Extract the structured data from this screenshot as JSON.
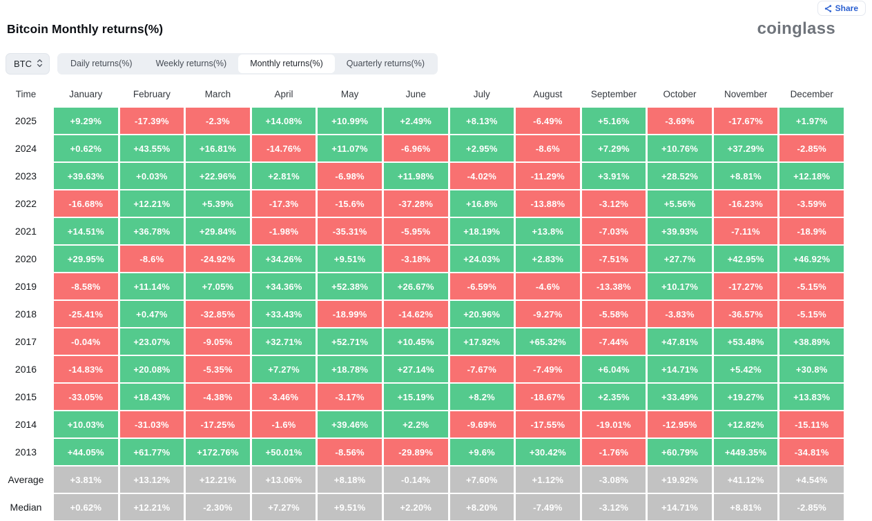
{
  "colors": {
    "positive_green": "#54ca8d",
    "negative_red": "#f87171",
    "summary_gray": "#c2c2c2",
    "accent_blue": "#2a5fd0"
  },
  "header": {
    "title": "Bitcoin Monthly returns(%)",
    "logo": "coinglass",
    "share_label": "Share",
    "share_icon": "share-nodes-icon"
  },
  "controls": {
    "symbol": "BTC",
    "symbol_icon": "chevron-up-down-icon",
    "tabs": [
      {
        "label": "Daily returns(%)",
        "active": false
      },
      {
        "label": "Weekly returns(%)",
        "active": false
      },
      {
        "label": "Monthly returns(%)",
        "active": true
      },
      {
        "label": "Quarterly returns(%)",
        "active": false
      }
    ]
  },
  "table": {
    "columns": [
      "Time",
      "January",
      "February",
      "March",
      "April",
      "May",
      "June",
      "July",
      "August",
      "September",
      "October",
      "November",
      "December"
    ],
    "rows": [
      {
        "label": "2025",
        "kind": "year",
        "values": [
          "+9.29%",
          "-17.39%",
          "-2.3%",
          "+14.08%",
          "+10.99%",
          "+2.49%",
          "+8.13%",
          "-6.49%",
          "+5.16%",
          "-3.69%",
          "-17.67%",
          "+1.97%"
        ]
      },
      {
        "label": "2024",
        "kind": "year",
        "values": [
          "+0.62%",
          "+43.55%",
          "+16.81%",
          "-14.76%",
          "+11.07%",
          "-6.96%",
          "+2.95%",
          "-8.6%",
          "+7.29%",
          "+10.76%",
          "+37.29%",
          "-2.85%"
        ]
      },
      {
        "label": "2023",
        "kind": "year",
        "values": [
          "+39.63%",
          "+0.03%",
          "+22.96%",
          "+2.81%",
          "-6.98%",
          "+11.98%",
          "-4.02%",
          "-11.29%",
          "+3.91%",
          "+28.52%",
          "+8.81%",
          "+12.18%"
        ]
      },
      {
        "label": "2022",
        "kind": "year",
        "values": [
          "-16.68%",
          "+12.21%",
          "+5.39%",
          "-17.3%",
          "-15.6%",
          "-37.28%",
          "+16.8%",
          "-13.88%",
          "-3.12%",
          "+5.56%",
          "-16.23%",
          "-3.59%"
        ]
      },
      {
        "label": "2021",
        "kind": "year",
        "values": [
          "+14.51%",
          "+36.78%",
          "+29.84%",
          "-1.98%",
          "-35.31%",
          "-5.95%",
          "+18.19%",
          "+13.8%",
          "-7.03%",
          "+39.93%",
          "-7.11%",
          "-18.9%"
        ]
      },
      {
        "label": "2020",
        "kind": "year",
        "values": [
          "+29.95%",
          "-8.6%",
          "-24.92%",
          "+34.26%",
          "+9.51%",
          "-3.18%",
          "+24.03%",
          "+2.83%",
          "-7.51%",
          "+27.7%",
          "+42.95%",
          "+46.92%"
        ]
      },
      {
        "label": "2019",
        "kind": "year",
        "values": [
          "-8.58%",
          "+11.14%",
          "+7.05%",
          "+34.36%",
          "+52.38%",
          "+26.67%",
          "-6.59%",
          "-4.6%",
          "-13.38%",
          "+10.17%",
          "-17.27%",
          "-5.15%"
        ]
      },
      {
        "label": "2018",
        "kind": "year",
        "values": [
          "-25.41%",
          "+0.47%",
          "-32.85%",
          "+33.43%",
          "-18.99%",
          "-14.62%",
          "+20.96%",
          "-9.27%",
          "-5.58%",
          "-3.83%",
          "-36.57%",
          "-5.15%"
        ]
      },
      {
        "label": "2017",
        "kind": "year",
        "values": [
          "-0.04%",
          "+23.07%",
          "-9.05%",
          "+32.71%",
          "+52.71%",
          "+10.45%",
          "+17.92%",
          "+65.32%",
          "-7.44%",
          "+47.81%",
          "+53.48%",
          "+38.89%"
        ]
      },
      {
        "label": "2016",
        "kind": "year",
        "values": [
          "-14.83%",
          "+20.08%",
          "-5.35%",
          "+7.27%",
          "+18.78%",
          "+27.14%",
          "-7.67%",
          "-7.49%",
          "+6.04%",
          "+14.71%",
          "+5.42%",
          "+30.8%"
        ]
      },
      {
        "label": "2015",
        "kind": "year",
        "values": [
          "-33.05%",
          "+18.43%",
          "-4.38%",
          "-3.46%",
          "-3.17%",
          "+15.19%",
          "+8.2%",
          "-18.67%",
          "+2.35%",
          "+33.49%",
          "+19.27%",
          "+13.83%"
        ]
      },
      {
        "label": "2014",
        "kind": "year",
        "values": [
          "+10.03%",
          "-31.03%",
          "-17.25%",
          "-1.6%",
          "+39.46%",
          "+2.2%",
          "-9.69%",
          "-17.55%",
          "-19.01%",
          "-12.95%",
          "+12.82%",
          "-15.11%"
        ]
      },
      {
        "label": "2013",
        "kind": "year",
        "values": [
          "+44.05%",
          "+61.77%",
          "+172.76%",
          "+50.01%",
          "-8.56%",
          "-29.89%",
          "+9.6%",
          "+30.42%",
          "-1.76%",
          "+60.79%",
          "+449.35%",
          "-34.81%"
        ]
      },
      {
        "label": "Average",
        "kind": "summary",
        "values": [
          "+3.81%",
          "+13.12%",
          "+12.21%",
          "+13.06%",
          "+8.18%",
          "-0.14%",
          "+7.60%",
          "+1.12%",
          "-3.08%",
          "+19.92%",
          "+41.12%",
          "+4.54%"
        ]
      },
      {
        "label": "Median",
        "kind": "summary",
        "values": [
          "+0.62%",
          "+12.21%",
          "-2.30%",
          "+7.27%",
          "+9.51%",
          "+2.20%",
          "+8.20%",
          "-7.49%",
          "-3.12%",
          "+14.71%",
          "+8.81%",
          "-2.85%"
        ]
      }
    ]
  }
}
